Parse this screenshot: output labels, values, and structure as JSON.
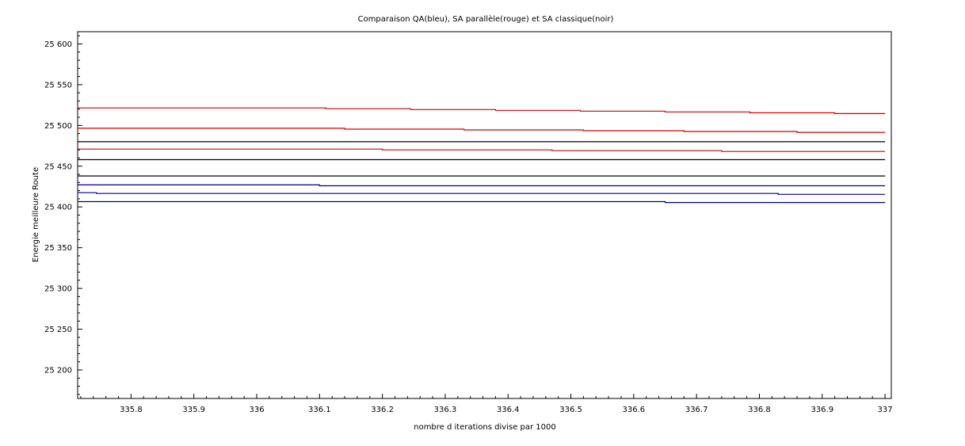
{
  "chart_data": {
    "type": "line",
    "title": "Comparaison QA(bleu), SA parallèle(rouge) et SA classique(noir)",
    "xlabel": "nombre d iterations divise par 1000",
    "ylabel": "Energie meilleure Route",
    "xlim": [
      335.715,
      337.01
    ],
    "ylim": [
      25165,
      25615
    ],
    "x_ticks": [
      335.8,
      335.9,
      336,
      336.1,
      336.2,
      336.3,
      336.4,
      336.5,
      336.6,
      336.7,
      336.8,
      336.9,
      337
    ],
    "x_tick_labels": [
      "335.8",
      "335.9",
      "336",
      "336.1",
      "336.2",
      "336.3",
      "336.4",
      "336.5",
      "336.6",
      "336.7",
      "336.8",
      "336.9",
      "337"
    ],
    "y_ticks": [
      25200,
      25250,
      25300,
      25350,
      25400,
      25450,
      25500,
      25550,
      25600
    ],
    "y_tick_labels": [
      "25 200",
      "25 250",
      "25 300",
      "25 350",
      "25 400",
      "25 450",
      "25 500",
      "25 550",
      "25 600"
    ],
    "grid": false,
    "series": [
      {
        "color": "#cc0000",
        "x": [
          335.715,
          336.11,
          336.245,
          336.38,
          336.515,
          336.65,
          336.785,
          336.92,
          337.0
        ],
        "values": [
          25521.5,
          25520.5,
          25519.5,
          25518.5,
          25517.5,
          25516.5,
          25515.5,
          25514.5,
          25514.5
        ]
      },
      {
        "color": "#cc0000",
        "x": [
          335.715,
          336.14,
          336.33,
          336.52,
          336.68,
          336.86,
          337.0
        ],
        "values": [
          25496.5,
          25495.5,
          25494.5,
          25493.5,
          25492.5,
          25491.5,
          25491.5
        ]
      },
      {
        "color": "#cc0000",
        "x": [
          335.715,
          336.2,
          336.47,
          336.74,
          337.0
        ],
        "values": [
          25471,
          25470,
          25469,
          25468,
          25468
        ]
      },
      {
        "color": "#000000",
        "x": [
          335.715,
          337.0
        ],
        "values": [
          25480,
          25480
        ]
      },
      {
        "color": "#000000",
        "x": [
          335.715,
          337.0
        ],
        "values": [
          25458,
          25458
        ]
      },
      {
        "color": "#000000",
        "x": [
          335.715,
          337.0
        ],
        "values": [
          25438,
          25438
        ]
      },
      {
        "color": "#000080",
        "x": [
          335.715,
          336.1,
          337.0
        ],
        "values": [
          25427,
          25426,
          25426
        ]
      },
      {
        "color": "#000080",
        "x": [
          335.715,
          335.745,
          336.83,
          337.0
        ],
        "values": [
          25417.5,
          25416.5,
          25415.5,
          25415.5
        ]
      },
      {
        "color": "#000080",
        "x": [
          335.715,
          336.65,
          337.0
        ],
        "values": [
          25406.5,
          25405.5,
          25405.5
        ]
      }
    ]
  }
}
